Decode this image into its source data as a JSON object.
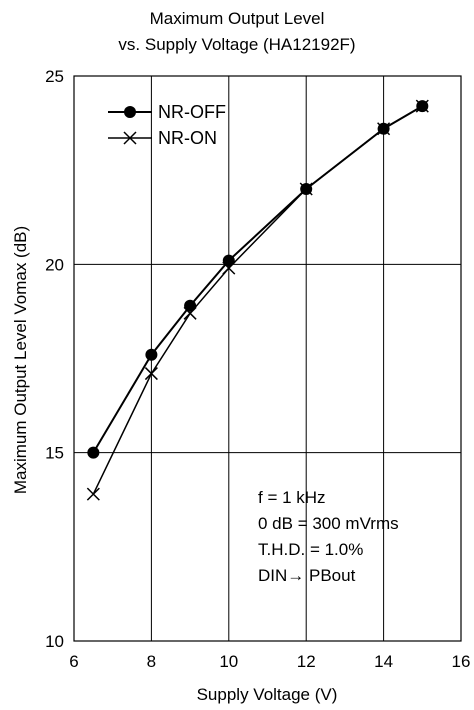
{
  "chart_data": {
    "type": "line",
    "title_line1": "Maximum Output Level",
    "title_line2": "vs. Supply Voltage  (HA12192F)",
    "xlabel": "Supply Voltage  (V)",
    "ylabel": "Maximum Output Level  Vomax  (dB)",
    "xlim": [
      6,
      16
    ],
    "ylim": [
      10,
      25
    ],
    "xticks": [
      6,
      8,
      10,
      12,
      14,
      16
    ],
    "yticks": [
      10,
      15,
      20,
      25
    ],
    "grid": true,
    "legend_position": "top-left",
    "series": [
      {
        "name": "NR-OFF",
        "marker": "filled-circle",
        "x": [
          6.5,
          8,
          9,
          10,
          12,
          14,
          15
        ],
        "y": [
          15.0,
          17.6,
          18.9,
          20.1,
          22.0,
          23.6,
          24.2
        ]
      },
      {
        "name": "NR-ON",
        "marker": "x-cross",
        "x": [
          6.5,
          8,
          9,
          10,
          12,
          14,
          15
        ],
        "y": [
          13.9,
          17.1,
          18.7,
          19.9,
          22.0,
          23.6,
          24.2
        ]
      }
    ],
    "annotations": [
      "f = 1 kHz",
      "0 dB = 300 mVrms",
      "T.H.D. = 1.0%",
      "DIN→ PBout"
    ]
  }
}
